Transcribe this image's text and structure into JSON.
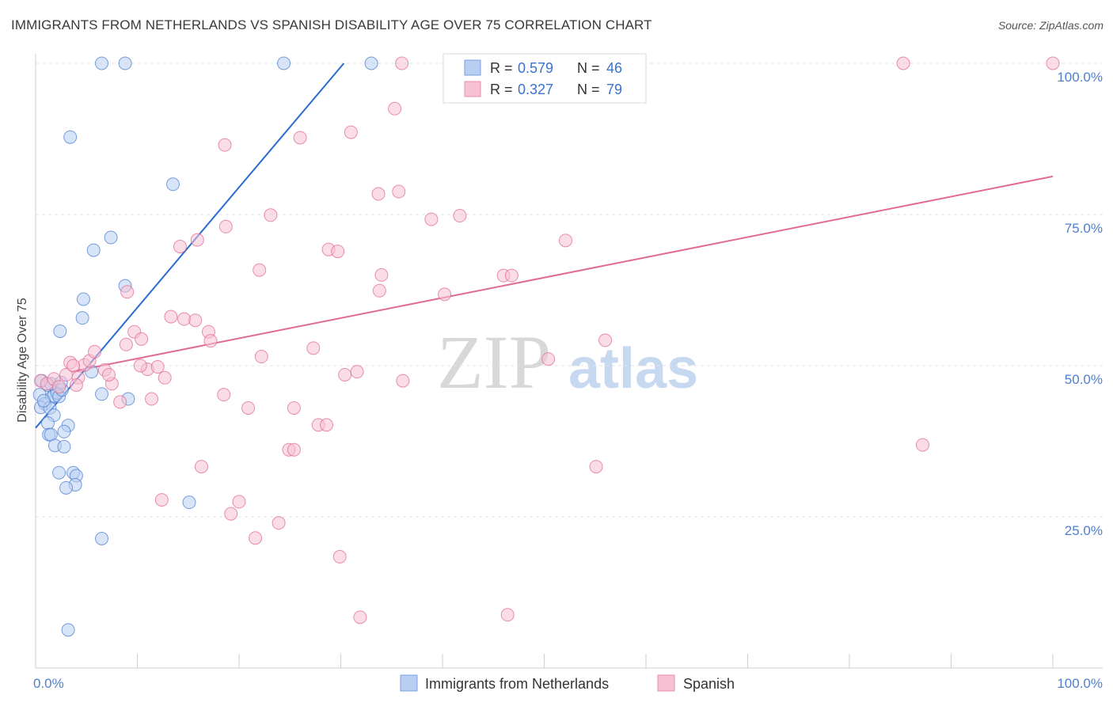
{
  "title": "IMMIGRANTS FROM NETHERLANDS VS SPANISH DISABILITY AGE OVER 75 CORRELATION CHART",
  "source": "Source: ZipAtlas.com",
  "watermark": {
    "zip": "ZIP",
    "atlas": "atlas"
  },
  "chart_data": {
    "type": "scatter",
    "title": "IMMIGRANTS FROM NETHERLANDS VS SPANISH DISABILITY AGE OVER 75 CORRELATION CHART",
    "xlabel": "",
    "ylabel": "Disability Age Over 75",
    "xlim": [
      0,
      100
    ],
    "ylim": [
      0,
      100
    ],
    "x_tick_labels": [
      "0.0%",
      "100.0%"
    ],
    "y_tick_labels": [
      "25.0%",
      "50.0%",
      "75.0%",
      "100.0%"
    ],
    "y_ticks": [
      25,
      50,
      75,
      100
    ],
    "legend": [
      {
        "r_label": "R =",
        "r_value": "0.579",
        "n_label": "N =",
        "n_value": "46"
      },
      {
        "r_label": "R =",
        "r_value": "0.327",
        "n_label": "N =",
        "n_value": "79"
      }
    ],
    "series": [
      {
        "name": "Immigrants from Netherlands",
        "color": "#4f7fcf",
        "fill": "#b8cff2",
        "trend": {
          "x": [
            0,
            30.3
          ],
          "y": [
            39.7,
            100
          ]
        },
        "points": [
          [
            0.6,
            47.5
          ],
          [
            1.2,
            46.8
          ],
          [
            0.4,
            45.2
          ],
          [
            1.6,
            44.8
          ],
          [
            2.0,
            46.2
          ],
          [
            1.8,
            45.0
          ],
          [
            0.9,
            43.7
          ],
          [
            0.5,
            43.1
          ],
          [
            1.4,
            43.0
          ],
          [
            1.8,
            41.8
          ],
          [
            2.1,
            45.5
          ],
          [
            2.3,
            44.9
          ],
          [
            2.6,
            46.0
          ],
          [
            1.2,
            40.5
          ],
          [
            3.2,
            40.1
          ],
          [
            2.8,
            39.1
          ],
          [
            1.3,
            38.6
          ],
          [
            1.5,
            38.6
          ],
          [
            1.9,
            36.8
          ],
          [
            2.8,
            36.6
          ],
          [
            2.3,
            32.3
          ],
          [
            3.7,
            32.3
          ],
          [
            4.0,
            31.8
          ],
          [
            3.9,
            30.3
          ],
          [
            3.0,
            29.8
          ],
          [
            6.5,
            45.3
          ],
          [
            5.5,
            49.0
          ],
          [
            9.1,
            44.5
          ],
          [
            2.4,
            55.7
          ],
          [
            4.6,
            57.9
          ],
          [
            4.7,
            61.0
          ],
          [
            8.8,
            63.2
          ],
          [
            5.7,
            69.1
          ],
          [
            7.4,
            71.2
          ],
          [
            13.5,
            80.0
          ],
          [
            3.4,
            87.8
          ],
          [
            6.5,
            100
          ],
          [
            8.8,
            100
          ],
          [
            24.4,
            100
          ],
          [
            33.0,
            100
          ],
          [
            6.5,
            21.4
          ],
          [
            15.1,
            27.4
          ],
          [
            3.2,
            6.3
          ],
          [
            1.5,
            47.0
          ],
          [
            2.5,
            47.2
          ],
          [
            0.8,
            44.2
          ]
        ]
      },
      {
        "name": "Spanish",
        "color": "#e06b94",
        "fill": "#f7c1d3",
        "trend": {
          "x": [
            3.5,
            100
          ],
          "y": [
            49.0,
            81.3
          ]
        },
        "points": [
          [
            0.5,
            47.5
          ],
          [
            1.1,
            47.0
          ],
          [
            1.8,
            47.8
          ],
          [
            2.3,
            46.5
          ],
          [
            3.0,
            48.5
          ],
          [
            3.4,
            50.5
          ],
          [
            4.2,
            48.0
          ],
          [
            4.8,
            50.1
          ],
          [
            5.3,
            50.8
          ],
          [
            5.8,
            52.3
          ],
          [
            6.8,
            49.3
          ],
          [
            7.5,
            47.0
          ],
          [
            8.3,
            44.0
          ],
          [
            8.9,
            53.5
          ],
          [
            9.7,
            55.6
          ],
          [
            10.4,
            54.4
          ],
          [
            11.0,
            49.4
          ],
          [
            11.4,
            44.5
          ],
          [
            12.0,
            49.8
          ],
          [
            12.7,
            48.0
          ],
          [
            13.3,
            58.1
          ],
          [
            14.2,
            69.7
          ],
          [
            14.6,
            57.7
          ],
          [
            15.7,
            57.5
          ],
          [
            15.9,
            70.8
          ],
          [
            17.0,
            55.6
          ],
          [
            17.2,
            54.1
          ],
          [
            18.5,
            45.2
          ],
          [
            20.0,
            27.5
          ],
          [
            22.0,
            65.8
          ],
          [
            22.2,
            51.5
          ],
          [
            23.1,
            74.9
          ],
          [
            24.9,
            36.1
          ],
          [
            25.4,
            36.1
          ],
          [
            25.4,
            43.0
          ],
          [
            26.0,
            87.7
          ],
          [
            27.3,
            52.9
          ],
          [
            27.8,
            40.2
          ],
          [
            28.6,
            40.2
          ],
          [
            28.8,
            69.2
          ],
          [
            29.7,
            68.9
          ],
          [
            30.4,
            48.5
          ],
          [
            29.9,
            18.4
          ],
          [
            31.0,
            88.6
          ],
          [
            31.6,
            49.0
          ],
          [
            31.9,
            8.4
          ],
          [
            33.7,
            78.4
          ],
          [
            35.3,
            92.5
          ],
          [
            33.8,
            62.4
          ],
          [
            34.0,
            65.0
          ],
          [
            35.7,
            78.8
          ],
          [
            36.1,
            47.5
          ],
          [
            38.9,
            74.2
          ],
          [
            40.2,
            61.8
          ],
          [
            41.7,
            74.8
          ],
          [
            46.0,
            64.9
          ],
          [
            46.8,
            64.9
          ],
          [
            46.4,
            8.8
          ],
          [
            50.4,
            51.1
          ],
          [
            52.1,
            70.7
          ],
          [
            55.1,
            33.3
          ],
          [
            56.0,
            54.2
          ],
          [
            85.3,
            100
          ],
          [
            87.2,
            36.9
          ],
          [
            100,
            100
          ],
          [
            36.0,
            100
          ],
          [
            9.0,
            62.2
          ],
          [
            18.7,
            73.0
          ],
          [
            18.6,
            86.5
          ],
          [
            19.2,
            25.5
          ],
          [
            21.6,
            21.5
          ],
          [
            20.9,
            43.0
          ],
          [
            12.4,
            27.8
          ],
          [
            16.3,
            33.3
          ],
          [
            23.9,
            24.0
          ],
          [
            7.2,
            48.5
          ],
          [
            4.0,
            46.8
          ],
          [
            10.3,
            50.0
          ],
          [
            3.7,
            50.0
          ]
        ]
      }
    ]
  },
  "bottom_legend": [
    "Immigrants from Netherlands",
    "Spanish"
  ]
}
